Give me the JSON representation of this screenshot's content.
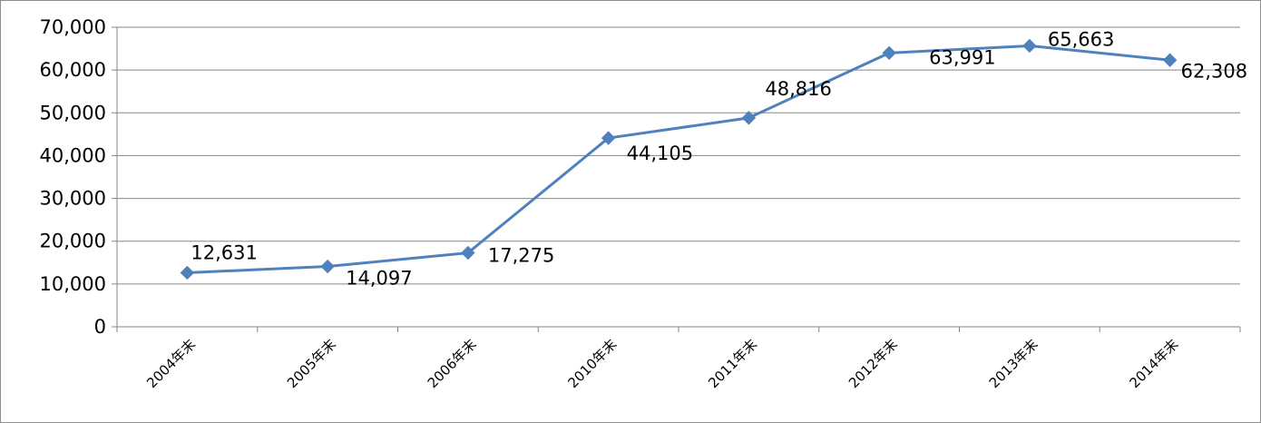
{
  "chart_data": {
    "type": "line",
    "categories": [
      "2004年末",
      "2005年末",
      "2006年末",
      "2010年末",
      "2011年末",
      "2012年末",
      "2013年末",
      "2014年末"
    ],
    "series": [
      {
        "values": [
          12631,
          14097,
          17275,
          44105,
          48816,
          63991,
          65663,
          62308
        ],
        "data_labels": [
          "12,631",
          "14,097",
          "17,275",
          "44,105",
          "48,816",
          "63,991",
          "65,663",
          "62,308"
        ],
        "color": "#4F81BD",
        "marker": "diamond"
      }
    ],
    "y_ticks": [
      "0",
      "10,000",
      "20,000",
      "30,000",
      "40,000",
      "50,000",
      "60,000",
      "70,000"
    ],
    "ylim": [
      0,
      70000
    ],
    "y_step": 10000,
    "grid": true,
    "legend": "none",
    "axis_color": "#868686"
  }
}
